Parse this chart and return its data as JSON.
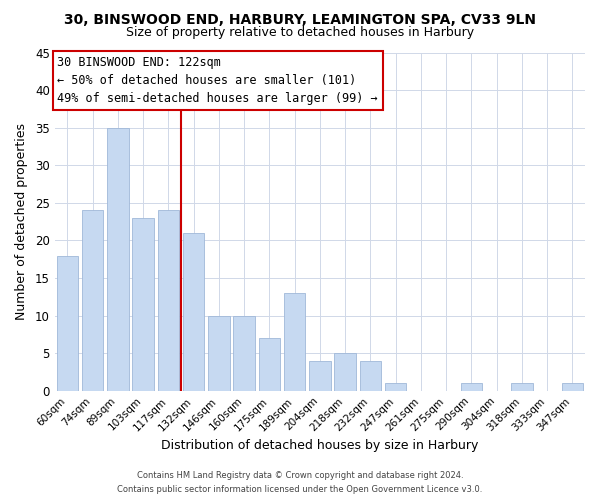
{
  "title1": "30, BINSWOOD END, HARBURY, LEAMINGTON SPA, CV33 9LN",
  "title2": "Size of property relative to detached houses in Harbury",
  "xlabel": "Distribution of detached houses by size in Harbury",
  "ylabel": "Number of detached properties",
  "bin_labels": [
    "60sqm",
    "74sqm",
    "89sqm",
    "103sqm",
    "117sqm",
    "132sqm",
    "146sqm",
    "160sqm",
    "175sqm",
    "189sqm",
    "204sqm",
    "218sqm",
    "232sqm",
    "247sqm",
    "261sqm",
    "275sqm",
    "290sqm",
    "304sqm",
    "318sqm",
    "333sqm",
    "347sqm"
  ],
  "bar_heights": [
    18,
    24,
    35,
    23,
    24,
    21,
    10,
    10,
    7,
    13,
    4,
    5,
    4,
    1,
    0,
    0,
    1,
    0,
    1,
    0,
    1
  ],
  "bar_color": "#c6d9f1",
  "bar_edge_color": "#a0b8d8",
  "vline_x_index": 4,
  "vline_color": "#cc0000",
  "ylim": [
    0,
    45
  ],
  "yticks": [
    0,
    5,
    10,
    15,
    20,
    25,
    30,
    35,
    40,
    45
  ],
  "annotation_title": "30 BINSWOOD END: 122sqm",
  "annotation_line1": "← 50% of detached houses are smaller (101)",
  "annotation_line2": "49% of semi-detached houses are larger (99) →",
  "annotation_box_color": "#ffffff",
  "annotation_box_edge": "#cc0000",
  "footer1": "Contains HM Land Registry data © Crown copyright and database right 2024.",
  "footer2": "Contains public sector information licensed under the Open Government Licence v3.0.",
  "background_color": "#ffffff",
  "grid_color": "#d0d8e8"
}
